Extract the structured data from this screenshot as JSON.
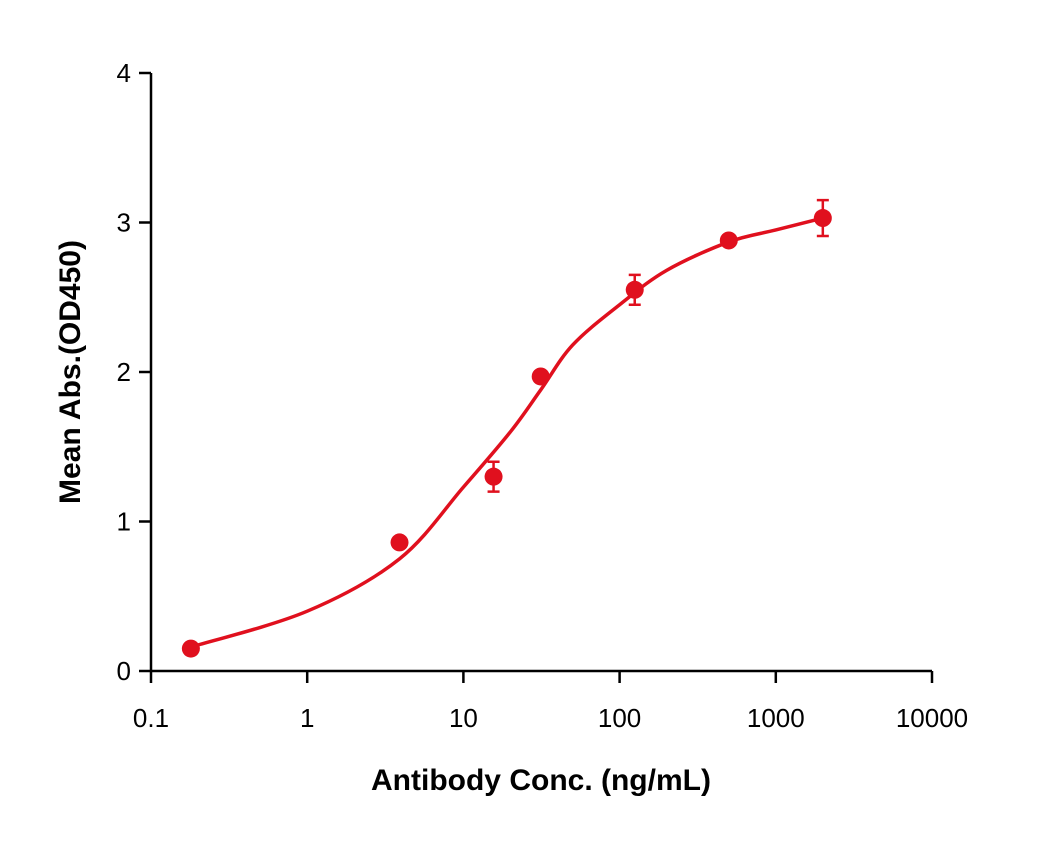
{
  "chart_data": {
    "type": "scatter",
    "x_label": "Antibody Conc. (ng/mL)",
    "y_label": "Mean Abs.(OD450)",
    "x_scale": "log",
    "xlim": [
      0.1,
      10000
    ],
    "ylim": [
      0,
      4
    ],
    "xticks": [
      0.1,
      1,
      10,
      100,
      1000,
      10000
    ],
    "yticks": [
      0,
      1,
      2,
      3,
      4
    ],
    "series": [
      {
        "color": "#e0101e",
        "x": [
          0.18,
          3.9,
          15.6,
          31.25,
          125,
          500,
          2000
        ],
        "values": [
          0.15,
          0.86,
          1.3,
          1.97,
          2.55,
          2.88,
          3.03
        ],
        "errors": [
          0.02,
          0.02,
          0.1,
          0.03,
          0.1,
          0.02,
          0.12
        ]
      }
    ],
    "fit": {
      "color": "#e0101e",
      "x": [
        0.18,
        1,
        3.9,
        10,
        20,
        31.25,
        50,
        100,
        200,
        500,
        1000,
        2000
      ],
      "values": [
        0.16,
        0.4,
        0.75,
        1.23,
        1.6,
        1.88,
        2.18,
        2.45,
        2.68,
        2.87,
        2.95,
        3.03
      ]
    }
  }
}
